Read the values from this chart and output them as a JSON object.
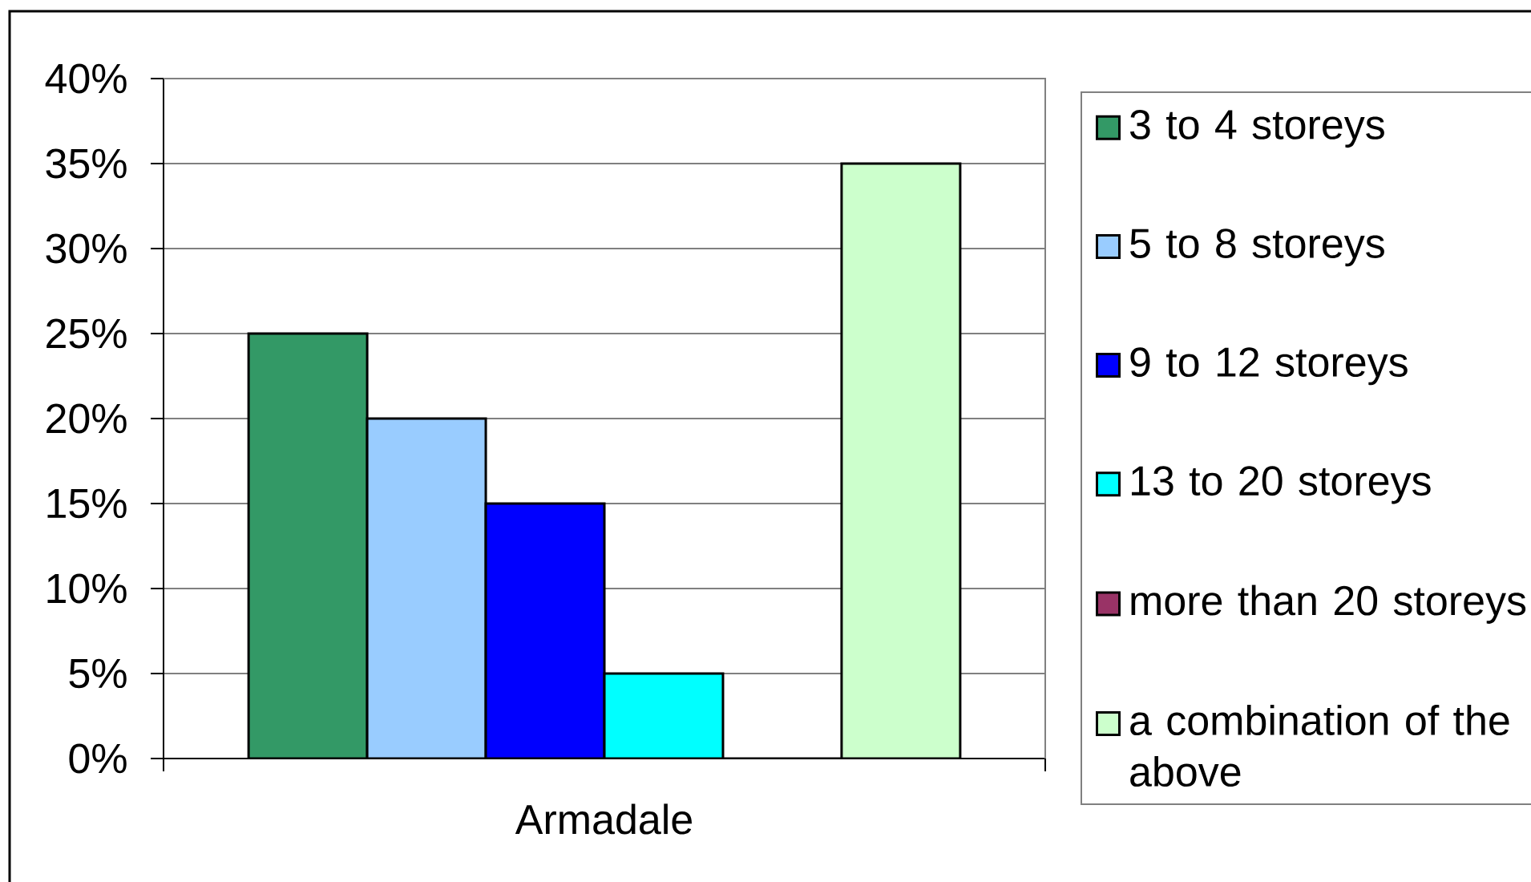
{
  "chart_data": {
    "type": "bar",
    "categories": [
      "Armadale"
    ],
    "series": [
      {
        "name": "3 to 4 storeys",
        "color": "#339966",
        "values": [
          25
        ]
      },
      {
        "name": "5 to 8 storeys",
        "color": "#99ccff",
        "values": [
          20
        ]
      },
      {
        "name": "9 to 12 storeys",
        "color": "#0000ff",
        "values": [
          15
        ]
      },
      {
        "name": "13 to 20 storeys",
        "color": "#00ffff",
        "values": [
          5
        ]
      },
      {
        "name": "more than 20 storeys",
        "color": "#993366",
        "values": [
          0
        ]
      },
      {
        "name": "a combination of the above",
        "color": "#ccffcc",
        "values": [
          35
        ]
      }
    ],
    "ylim": [
      0,
      40
    ],
    "yticks": [
      {
        "value": 0,
        "label": "0%"
      },
      {
        "value": 5,
        "label": "5%"
      },
      {
        "value": 10,
        "label": "10%"
      },
      {
        "value": 15,
        "label": "15%"
      },
      {
        "value": 20,
        "label": "20%"
      },
      {
        "value": 25,
        "label": "25%"
      },
      {
        "value": 30,
        "label": "30%"
      },
      {
        "value": 35,
        "label": "35%"
      },
      {
        "value": 40,
        "label": "40%"
      }
    ],
    "grid": "y",
    "legend": "right"
  }
}
